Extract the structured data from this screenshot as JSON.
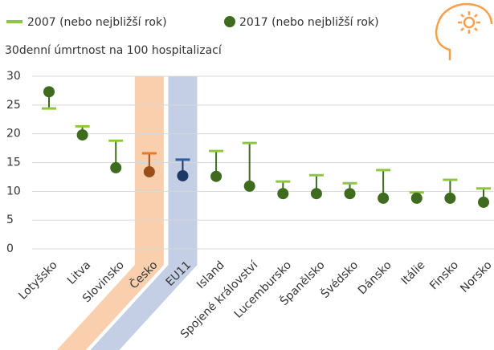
{
  "chart_data": {
    "type": "dot_range",
    "y_label": "30denní úmrtnost na 100 hospitalizací",
    "categories": [
      "Lotyšsko",
      "Litva",
      "Slovinsko",
      "Česko",
      "EU11",
      "Island",
      "Spojené království",
      "Lucembursko",
      "Španělsko",
      "Švédsko",
      "Dánsko",
      "Itálie",
      "Finsko",
      "Norsko"
    ],
    "series": [
      {
        "name": "2007 (nebo nejbližší rok)",
        "color": "#8dc63f",
        "point_colors": [
          "#8dc63f",
          "#8dc63f",
          "#8dc63f",
          "#e8782a",
          "#2a5ea8",
          "#8dc63f",
          "#8dc63f",
          "#8dc63f",
          "#8dc63f",
          "#8dc63f",
          "#8dc63f",
          "#8dc63f",
          "#8dc63f",
          "#8dc63f"
        ],
        "values": [
          24.4,
          21.3,
          18.8,
          16.6,
          15.5,
          17.0,
          18.4,
          11.7,
          12.8,
          11.4,
          13.7,
          9.8,
          12.0,
          10.5
        ]
      },
      {
        "name": "2017 (nebo nejbližší rok)",
        "color": "#3e6b1e",
        "point_colors": [
          "#3e6b1e",
          "#3e6b1e",
          "#3e6b1e",
          "#9a4e18",
          "#1d3a66",
          "#3e6b1e",
          "#3e6b1e",
          "#3e6b1e",
          "#3e6b1e",
          "#3e6b1e",
          "#3e6b1e",
          "#3e6b1e",
          "#3e6b1e",
          "#3e6b1e"
        ],
        "values": [
          27.3,
          19.8,
          14.1,
          13.4,
          12.7,
          12.6,
          10.9,
          9.6,
          9.6,
          9.6,
          8.8,
          8.8,
          8.8,
          8.1
        ]
      }
    ],
    "band_colors": [
      null,
      null,
      null,
      "#f9cfae",
      "#c4cfe5",
      null,
      null,
      null,
      null,
      null,
      null,
      null,
      null,
      null
    ],
    "ylim": [
      0,
      30
    ],
    "yticks": [
      0,
      5,
      10,
      15,
      20,
      25,
      30
    ],
    "grid": true
  }
}
